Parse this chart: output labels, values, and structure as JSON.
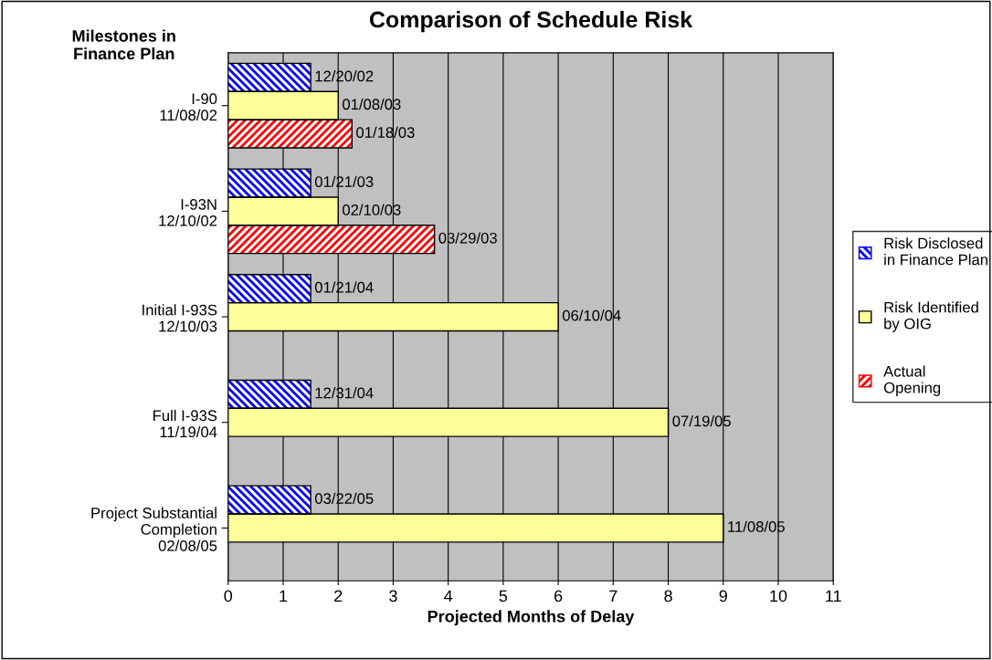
{
  "chart_data": {
    "type": "bar",
    "orientation": "horizontal",
    "title": "Comparison of Schedule Risk",
    "ylabel": "Milestones in\nFinance Plan",
    "xlabel": "Projected Months of Delay",
    "categories": [
      "I-90\n11/08/02",
      "I-93N\n12/10/02",
      "Initial I-93S\n12/10/03",
      "Full I-93S\n11/19/04",
      "Project Substantial\nCompletion\n02/08/05"
    ],
    "series": [
      {
        "name": "Risk Disclosed\nin Finance Plan",
        "color": "#0000ff",
        "values": [
          1.5,
          1.5,
          1.5,
          1.5,
          1.5
        ],
        "value_labels": [
          "12/20/02",
          "01/21/03",
          "01/21/04",
          "12/31/04",
          "03/22/05"
        ]
      },
      {
        "name": "Risk Identified\nby OIG",
        "color": "#ffff99",
        "values": [
          2,
          2,
          6,
          8,
          9
        ],
        "value_labels": [
          "01/08/03",
          "02/10/03",
          "06/10/04",
          "07/19/05",
          "11/08/05"
        ]
      },
      {
        "name": "Actual\nOpening",
        "color": "#ff0000",
        "values": [
          2.25,
          3.75,
          null,
          null,
          null
        ],
        "value_labels": [
          "01/18/03",
          "03/29/03",
          null,
          null,
          null
        ]
      }
    ],
    "xlim": [
      0,
      11
    ],
    "xticks": [
      0,
      1,
      2,
      3,
      4,
      5,
      6,
      7,
      8,
      9,
      10,
      11
    ],
    "grid": "x",
    "legend": "right"
  }
}
